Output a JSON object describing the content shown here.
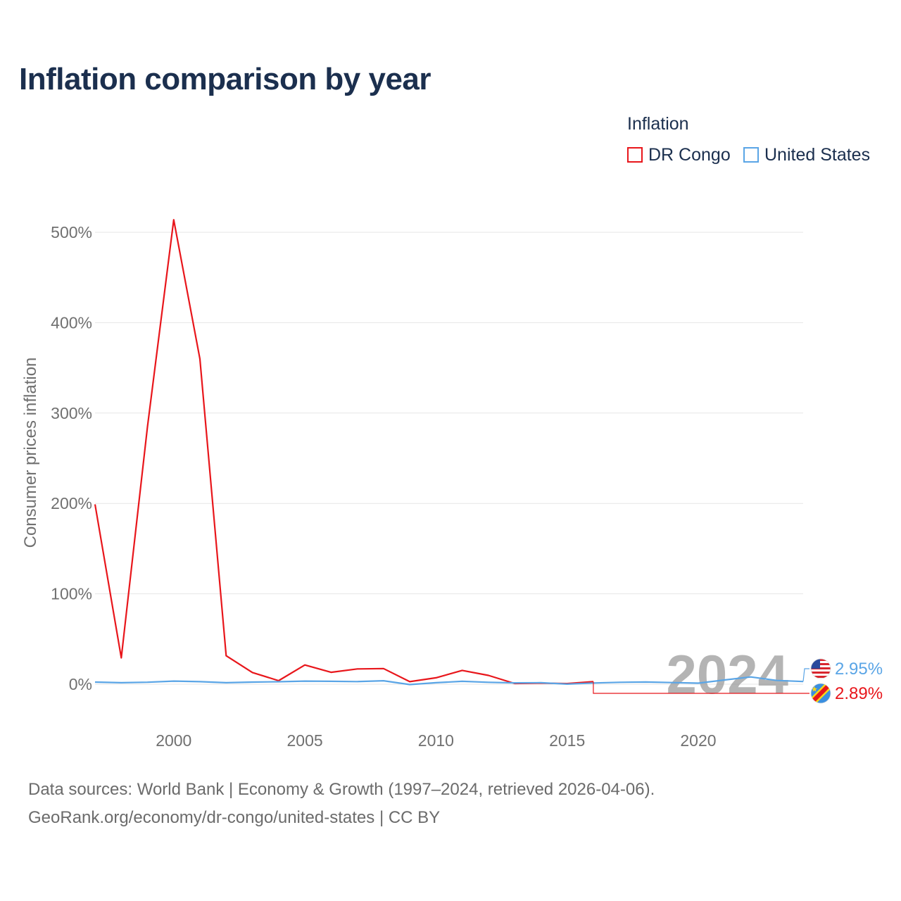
{
  "title": "Inflation comparison by year",
  "legend": {
    "title": "Inflation",
    "items": [
      {
        "label": "DR Congo",
        "color": "#e8161b"
      },
      {
        "label": "United States",
        "color": "#5aa5e6"
      }
    ]
  },
  "footer": {
    "line1": "Data sources: World Bank | Economy & Growth (1997–2024, retrieved 2026-04-06).",
    "line2": "GeoRank.org/economy/dr-congo/united-states | CC BY"
  },
  "chart_data": {
    "type": "line",
    "title": "Inflation comparison by year",
    "xlabel": "",
    "ylabel": "Consumer prices inflation",
    "xlim": [
      1997,
      2024
    ],
    "ylim": [
      0,
      500
    ],
    "x_ticks": [
      2000,
      2005,
      2010,
      2015,
      2020
    ],
    "y_ticks": [
      0,
      100,
      200,
      300,
      400,
      500
    ],
    "y_tick_labels": [
      "0%",
      "100%",
      "200%",
      "300%",
      "400%",
      "500%"
    ],
    "grid": true,
    "legend_position": "top-right",
    "year_watermark": "2024",
    "x": [
      1997,
      1998,
      1999,
      2000,
      2001,
      2002,
      2003,
      2004,
      2005,
      2006,
      2007,
      2008,
      2009,
      2010,
      2011,
      2012,
      2013,
      2014,
      2015,
      2016,
      2017,
      2018,
      2019,
      2020,
      2021,
      2022,
      2023,
      2024
    ],
    "series": [
      {
        "name": "DR Congo",
        "color": "#e8161b",
        "end_label": "2.89%",
        "values": [
          199,
          29.1,
          284.9,
          513.9,
          359.9,
          31.5,
          12.9,
          3.9,
          21.3,
          13.2,
          16.9,
          17.3,
          2.8,
          7.1,
          15.3,
          9.7,
          0.8,
          1.2,
          0.7,
          2.9,
          null,
          null,
          null,
          null,
          null,
          null,
          null,
          2.89
        ]
      },
      {
        "name": "United States",
        "color": "#5aa5e6",
        "end_label": "2.95%",
        "values": [
          2.3,
          1.6,
          2.2,
          3.4,
          2.8,
          1.6,
          2.3,
          2.7,
          3.4,
          3.2,
          2.9,
          3.8,
          -0.4,
          1.6,
          3.2,
          2.1,
          1.5,
          1.6,
          0.1,
          1.3,
          2.1,
          2.4,
          1.8,
          1.2,
          4.7,
          8.0,
          4.1,
          2.95
        ]
      }
    ]
  }
}
